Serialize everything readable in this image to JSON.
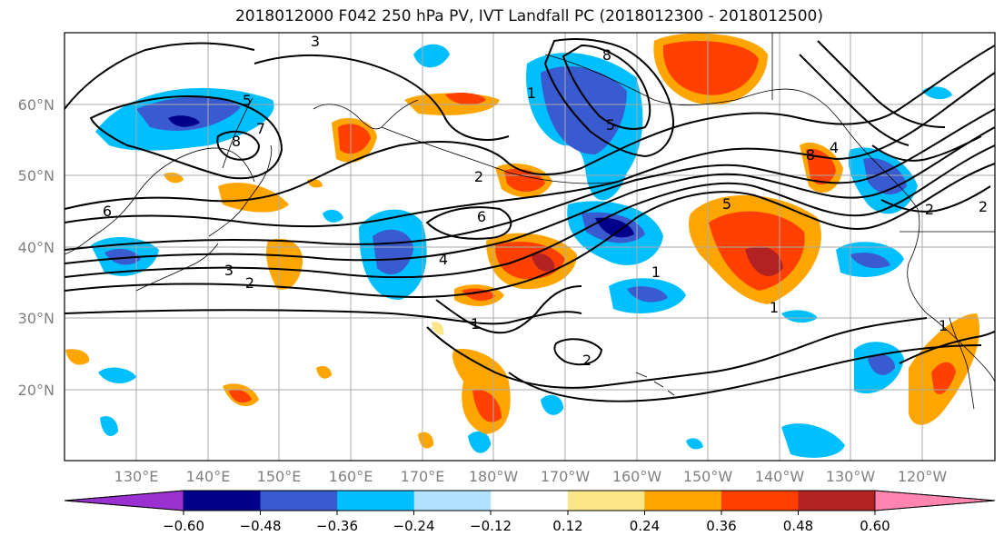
{
  "title": "2018012000 F042 250 hPa PV, IVT Landfall PC (2018012300 - 2018012500)",
  "lat_labels": [
    "60°N",
    "50°N",
    "40°N",
    "30°N",
    "20°N"
  ],
  "lon_labels": [
    "130°E",
    "140°E",
    "150°E",
    "160°E",
    "170°E",
    "180°W",
    "170°W",
    "160°W",
    "150°W",
    "140°W",
    "130°W",
    "120°W"
  ],
  "contour_labels": [
    "3",
    "5",
    "7",
    "8",
    "8",
    "6",
    "6",
    "4",
    "3",
    "2",
    "2",
    "1",
    "1",
    "2",
    "5",
    "1",
    "1",
    "8",
    "4",
    "5",
    "2",
    "2",
    "1"
  ],
  "colorbar": {
    "ticks": [
      "−0.60",
      "−0.48",
      "−0.36",
      "−0.24",
      "−0.12",
      "0.12",
      "0.24",
      "0.36",
      "0.48",
      "0.60"
    ],
    "colors": [
      "#9b30d0",
      "#00008b",
      "#3a5bd0",
      "#00bfff",
      "#b0e2ff",
      "#ffffff",
      "#fde68a",
      "#ffa500",
      "#ff4000",
      "#b22222",
      "#ff85b0"
    ]
  },
  "colors": {
    "axis_text": "#808080",
    "contour": "#000000"
  }
}
